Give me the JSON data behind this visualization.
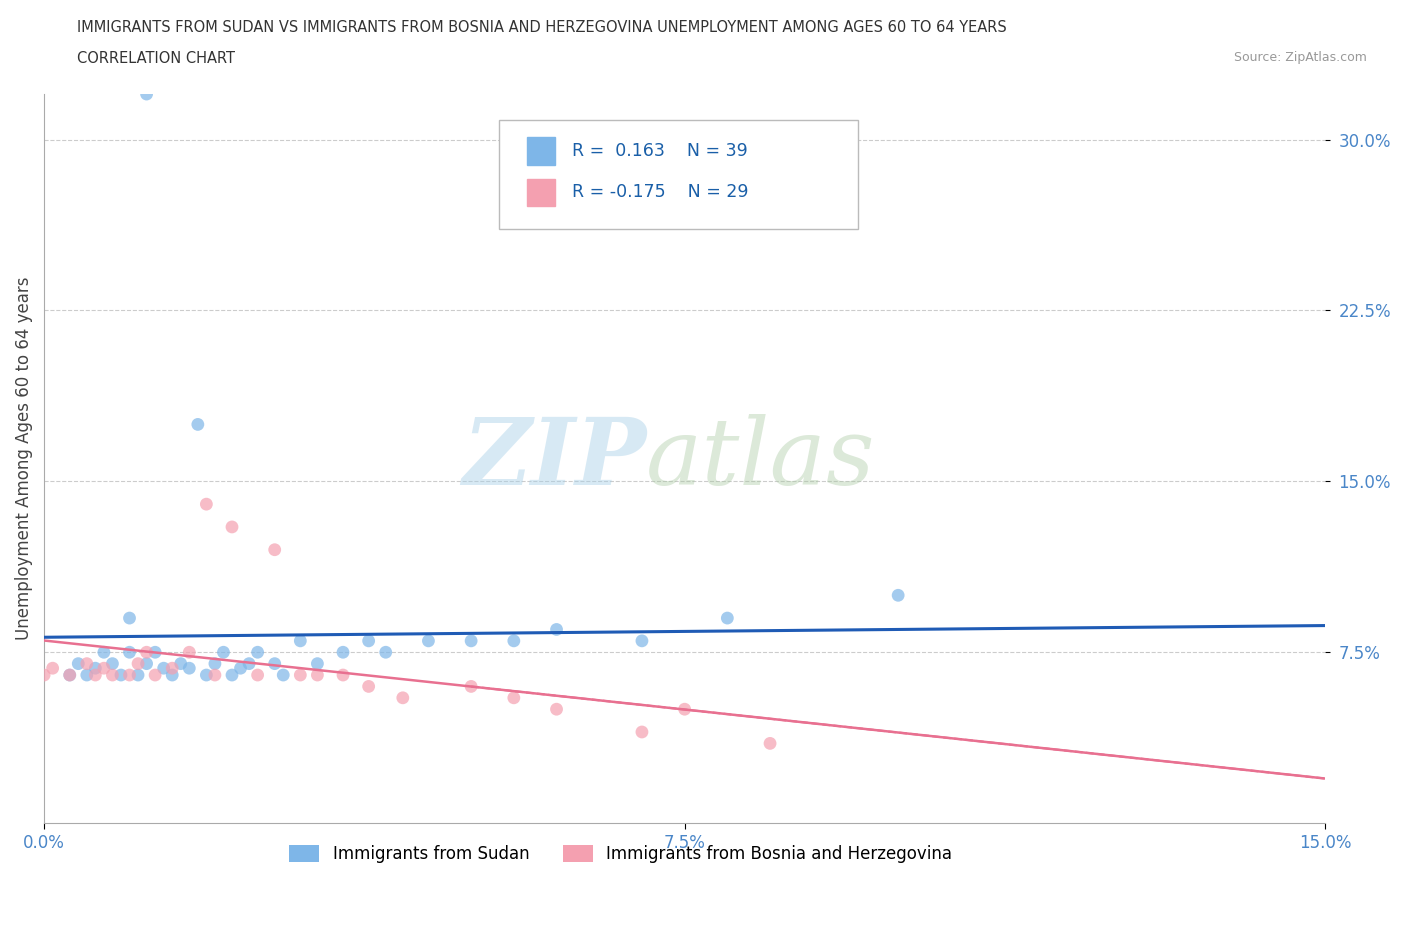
{
  "title_line1": "IMMIGRANTS FROM SUDAN VS IMMIGRANTS FROM BOSNIA AND HERZEGOVINA UNEMPLOYMENT AMONG AGES 60 TO 64 YEARS",
  "title_line2": "CORRELATION CHART",
  "source": "Source: ZipAtlas.com",
  "ylabel": "Unemployment Among Ages 60 to 64 years",
  "xlim": [
    0.0,
    0.15
  ],
  "ylim": [
    0.0,
    0.32
  ],
  "xticks": [
    0.0,
    0.075,
    0.15
  ],
  "xticklabels": [
    "0.0%",
    "7.5%",
    "15.0%"
  ],
  "yticks": [
    0.075,
    0.15,
    0.225,
    0.3
  ],
  "yticklabels": [
    "7.5%",
    "15.0%",
    "22.5%",
    "30.0%"
  ],
  "sudan_R": 0.163,
  "sudan_N": 39,
  "bosnia_R": -0.175,
  "bosnia_N": 29,
  "sudan_color": "#7EB6E8",
  "bosnia_color": "#F4A0B0",
  "sudan_line_color": "#1F5BB5",
  "bosnia_line_color": "#E87090",
  "legend_label_sudan": "Immigrants from Sudan",
  "legend_label_bosnia": "Immigrants from Bosnia and Herzegovina",
  "sudan_x": [
    0.003,
    0.004,
    0.005,
    0.006,
    0.007,
    0.008,
    0.009,
    0.01,
    0.01,
    0.011,
    0.012,
    0.013,
    0.014,
    0.015,
    0.016,
    0.017,
    0.018,
    0.019,
    0.02,
    0.021,
    0.022,
    0.023,
    0.024,
    0.025,
    0.027,
    0.028,
    0.03,
    0.032,
    0.035,
    0.038,
    0.04,
    0.045,
    0.05,
    0.055,
    0.06,
    0.07,
    0.08,
    0.1,
    0.012
  ],
  "sudan_y": [
    0.065,
    0.07,
    0.065,
    0.068,
    0.075,
    0.07,
    0.065,
    0.075,
    0.09,
    0.065,
    0.07,
    0.075,
    0.068,
    0.065,
    0.07,
    0.068,
    0.175,
    0.065,
    0.07,
    0.075,
    0.065,
    0.068,
    0.07,
    0.075,
    0.07,
    0.065,
    0.08,
    0.07,
    0.075,
    0.08,
    0.075,
    0.08,
    0.08,
    0.08,
    0.085,
    0.08,
    0.09,
    0.1,
    0.32
  ],
  "bosnia_x": [
    0.0,
    0.001,
    0.003,
    0.005,
    0.006,
    0.007,
    0.008,
    0.01,
    0.011,
    0.012,
    0.013,
    0.015,
    0.017,
    0.019,
    0.02,
    0.022,
    0.025,
    0.027,
    0.03,
    0.032,
    0.035,
    0.038,
    0.042,
    0.05,
    0.055,
    0.06,
    0.07,
    0.075,
    0.085
  ],
  "bosnia_y": [
    0.065,
    0.068,
    0.065,
    0.07,
    0.065,
    0.068,
    0.065,
    0.065,
    0.07,
    0.075,
    0.065,
    0.068,
    0.075,
    0.14,
    0.065,
    0.13,
    0.065,
    0.12,
    0.065,
    0.065,
    0.065,
    0.06,
    0.055,
    0.06,
    0.055,
    0.05,
    0.04,
    0.05,
    0.035
  ]
}
